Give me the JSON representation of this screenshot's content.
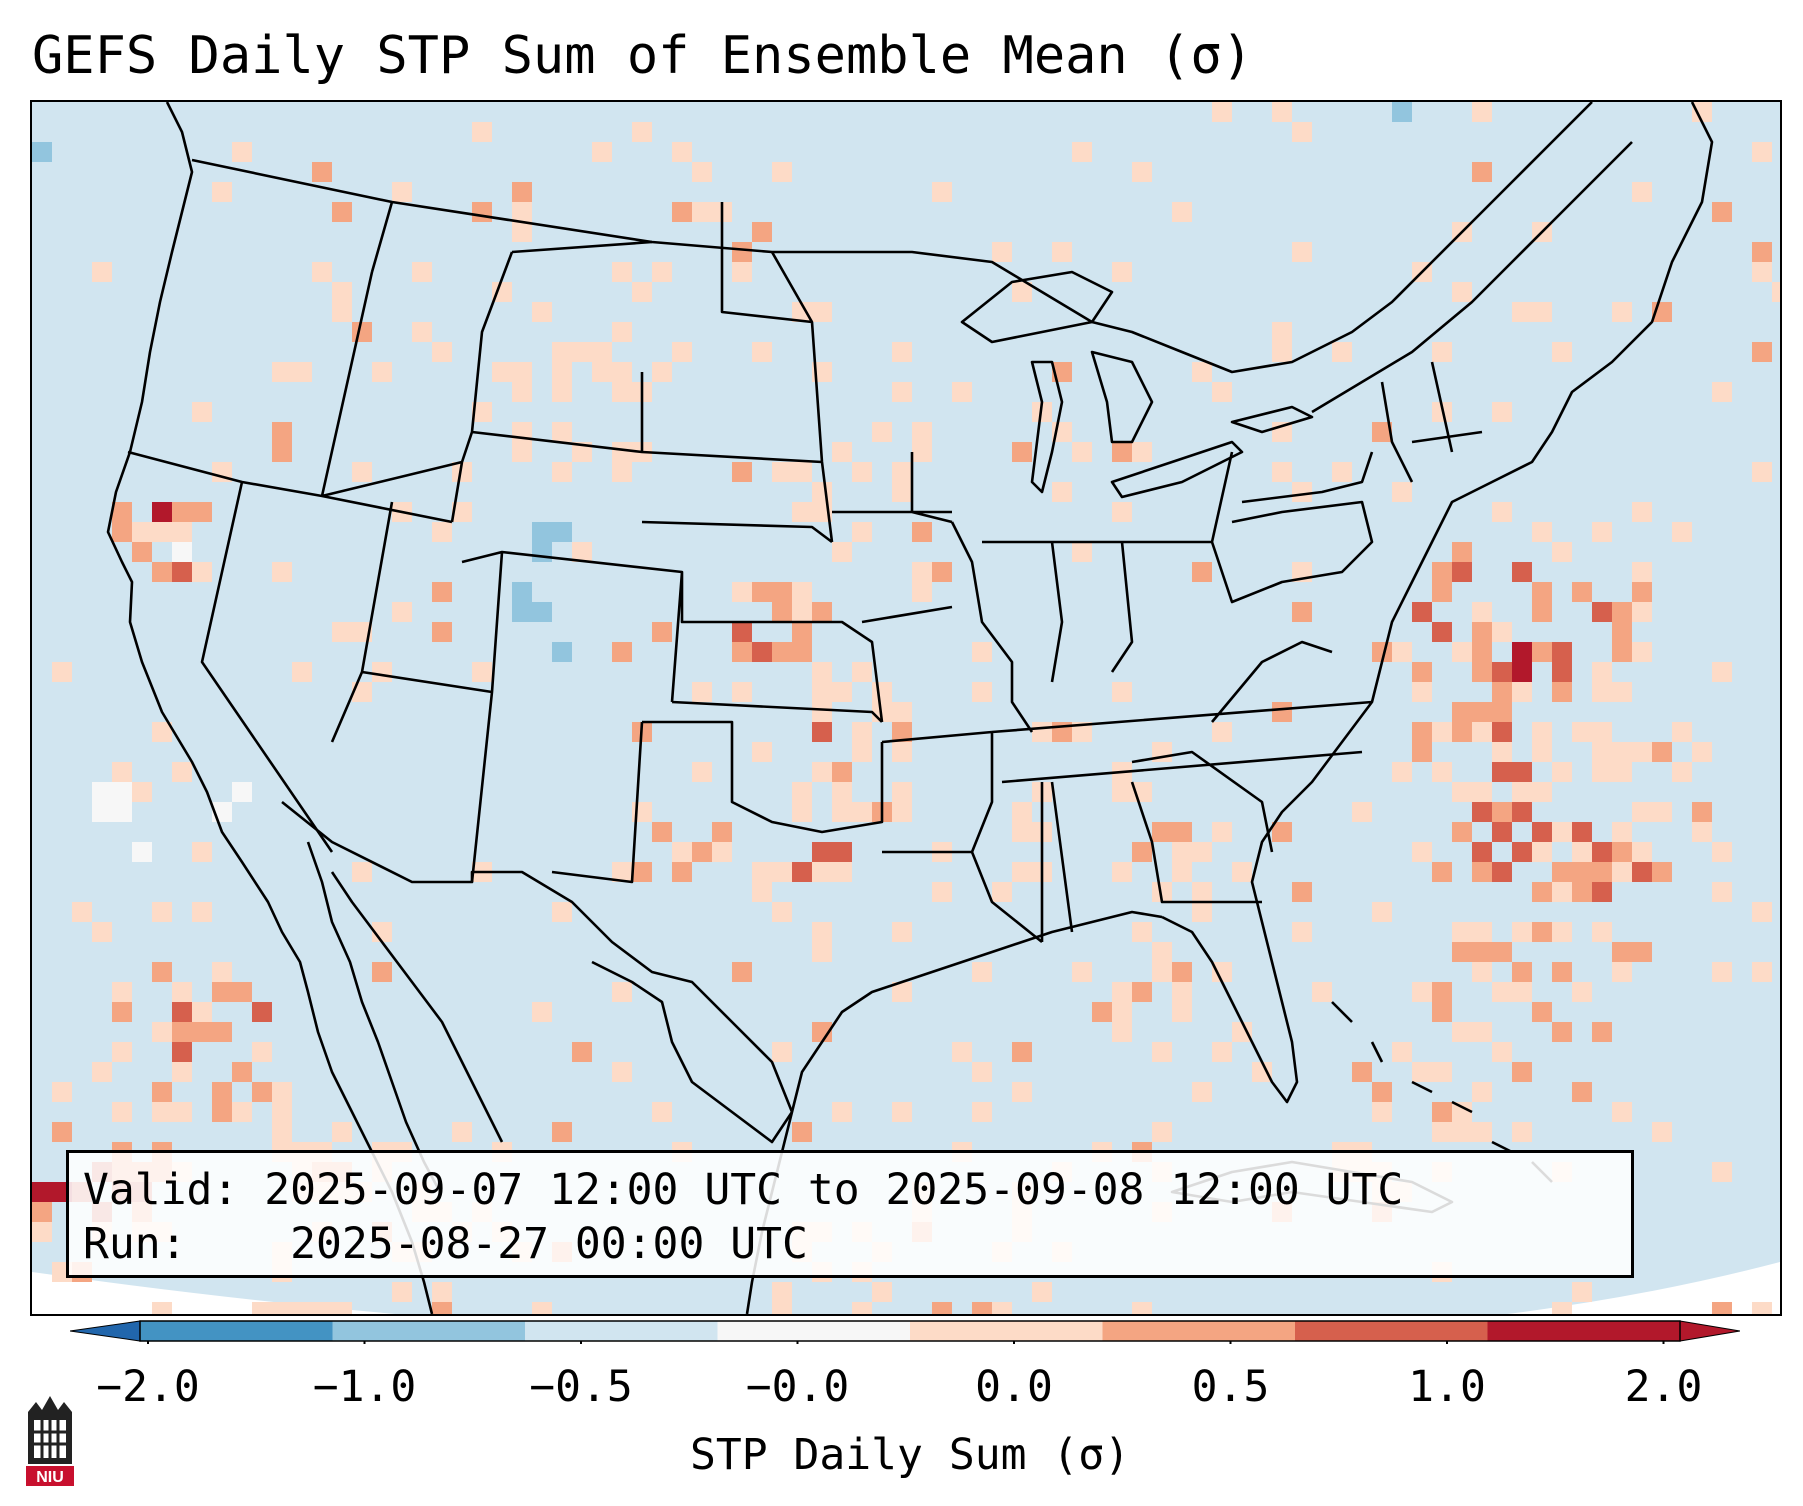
{
  "title": "GEFS Daily STP Sum of Ensemble Mean (σ)",
  "info": {
    "valid_label": "Valid:",
    "valid_value": "2025-09-07 12:00 UTC to 2025-09-08 12:00 UTC",
    "run_label": "Run:",
    "run_value": "2025-08-27 00:00 UTC"
  },
  "colorbar": {
    "label": "STP Daily Sum (σ)",
    "ticks": [
      "−2.0",
      "−1.0",
      "−0.5",
      "−0.0",
      "0.0",
      "0.5",
      "1.0",
      "2.0"
    ],
    "colors": [
      "#4393c3",
      "#92c5de",
      "#d1e5f0",
      "#f7f7f7",
      "#fddbc7",
      "#f4a582",
      "#d6604d",
      "#b2182b"
    ],
    "under_color": "#2166ac",
    "over_color": "#b2182b"
  },
  "map": {
    "background_color": "#d1e5f0",
    "border_color": "#000000"
  },
  "logo": {
    "text": "NIU"
  }
}
